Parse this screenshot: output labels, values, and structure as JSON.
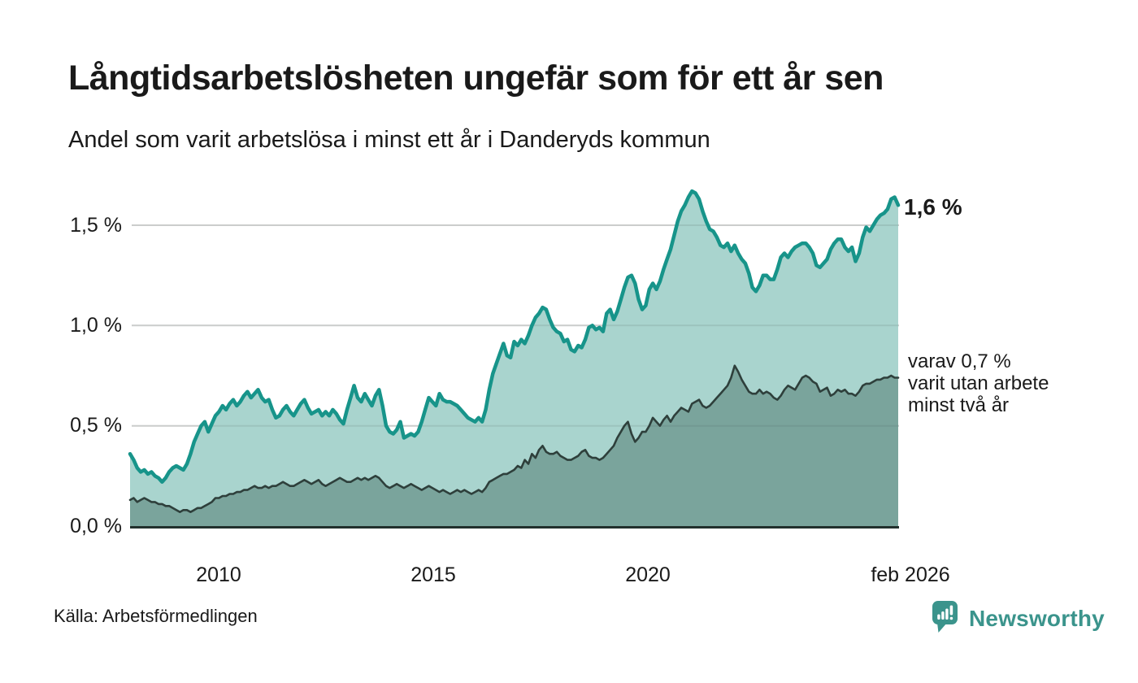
{
  "header": {
    "title": "Långtidsarbetslösheten ungefär som för ett år sen",
    "subtitle": "Andel som varit arbetslösa i minst ett år i Danderyds kommun"
  },
  "chart_data": {
    "type": "area",
    "unit": "percent",
    "frequency": "monthly",
    "x_start": "feb 2008",
    "x_end": "feb 2026",
    "x_tick_labels": [
      "2010",
      "2015",
      "2020",
      "feb 2026"
    ],
    "y_tick_labels": [
      "0,0 %",
      "0,5 %",
      "1,0 %",
      "1,5 %"
    ],
    "y_ticks": [
      0,
      0.5,
      1.0,
      1.5
    ],
    "ylim": [
      0,
      1.75
    ],
    "grid": true,
    "colors": {
      "line_1yr": "#17948a",
      "fill_1yr": "#a9d4ce",
      "line_2yr": "#2e3f3b",
      "fill_2yr": "#7aa49c",
      "gridline": "#e0e0e0",
      "axis": "#22302d",
      "brand_teal": "#3b948c"
    },
    "series": [
      {
        "name": "Arbetslösa minst ett år",
        "values": [
          0.36,
          0.33,
          0.29,
          0.27,
          0.28,
          0.26,
          0.27,
          0.25,
          0.24,
          0.22,
          0.24,
          0.27,
          0.29,
          0.3,
          0.29,
          0.28,
          0.31,
          0.36,
          0.42,
          0.46,
          0.5,
          0.52,
          0.47,
          0.51,
          0.55,
          0.57,
          0.6,
          0.58,
          0.61,
          0.63,
          0.6,
          0.62,
          0.65,
          0.67,
          0.64,
          0.66,
          0.68,
          0.64,
          0.62,
          0.63,
          0.58,
          0.54,
          0.55,
          0.58,
          0.6,
          0.57,
          0.55,
          0.58,
          0.61,
          0.63,
          0.59,
          0.56,
          0.57,
          0.58,
          0.55,
          0.57,
          0.55,
          0.58,
          0.56,
          0.53,
          0.51,
          0.58,
          0.64,
          0.7,
          0.64,
          0.62,
          0.66,
          0.63,
          0.6,
          0.65,
          0.68,
          0.6,
          0.5,
          0.47,
          0.46,
          0.48,
          0.52,
          0.44,
          0.45,
          0.46,
          0.45,
          0.47,
          0.52,
          0.58,
          0.64,
          0.62,
          0.6,
          0.66,
          0.63,
          0.62,
          0.62,
          0.61,
          0.6,
          0.58,
          0.56,
          0.54,
          0.53,
          0.52,
          0.54,
          0.52,
          0.58,
          0.68,
          0.76,
          0.81,
          0.86,
          0.91,
          0.85,
          0.84,
          0.92,
          0.9,
          0.93,
          0.91,
          0.95,
          1.0,
          1.04,
          1.06,
          1.09,
          1.08,
          1.03,
          0.99,
          0.97,
          0.96,
          0.92,
          0.93,
          0.88,
          0.87,
          0.9,
          0.89,
          0.93,
          0.99,
          1.0,
          0.98,
          0.99,
          0.97,
          1.06,
          1.08,
          1.03,
          1.07,
          1.13,
          1.19,
          1.24,
          1.25,
          1.21,
          1.13,
          1.08,
          1.1,
          1.18,
          1.21,
          1.18,
          1.22,
          1.28,
          1.33,
          1.38,
          1.45,
          1.52,
          1.57,
          1.6,
          1.64,
          1.67,
          1.66,
          1.63,
          1.57,
          1.52,
          1.48,
          1.47,
          1.44,
          1.4,
          1.39,
          1.41,
          1.37,
          1.4,
          1.36,
          1.33,
          1.31,
          1.26,
          1.19,
          1.17,
          1.2,
          1.25,
          1.25,
          1.23,
          1.23,
          1.28,
          1.34,
          1.36,
          1.34,
          1.37,
          1.39,
          1.4,
          1.41,
          1.41,
          1.39,
          1.36,
          1.3,
          1.29,
          1.31,
          1.33,
          1.38,
          1.41,
          1.43,
          1.43,
          1.39,
          1.37,
          1.39,
          1.32,
          1.36,
          1.44,
          1.49,
          1.47,
          1.5,
          1.53,
          1.55,
          1.56,
          1.58,
          1.63,
          1.64,
          1.6
        ]
      },
      {
        "name": "Arbetslösa minst två år",
        "values": [
          0.13,
          0.14,
          0.12,
          0.13,
          0.14,
          0.13,
          0.12,
          0.12,
          0.11,
          0.11,
          0.1,
          0.1,
          0.09,
          0.08,
          0.07,
          0.08,
          0.08,
          0.07,
          0.08,
          0.09,
          0.09,
          0.1,
          0.11,
          0.12,
          0.14,
          0.14,
          0.15,
          0.15,
          0.16,
          0.16,
          0.17,
          0.17,
          0.18,
          0.18,
          0.19,
          0.2,
          0.19,
          0.19,
          0.2,
          0.19,
          0.2,
          0.2,
          0.21,
          0.22,
          0.21,
          0.2,
          0.2,
          0.21,
          0.22,
          0.23,
          0.22,
          0.21,
          0.22,
          0.23,
          0.21,
          0.2,
          0.21,
          0.22,
          0.23,
          0.24,
          0.23,
          0.22,
          0.22,
          0.23,
          0.24,
          0.23,
          0.24,
          0.23,
          0.24,
          0.25,
          0.24,
          0.22,
          0.2,
          0.19,
          0.2,
          0.21,
          0.2,
          0.19,
          0.2,
          0.21,
          0.2,
          0.19,
          0.18,
          0.19,
          0.2,
          0.19,
          0.18,
          0.17,
          0.18,
          0.17,
          0.16,
          0.17,
          0.18,
          0.17,
          0.18,
          0.17,
          0.16,
          0.17,
          0.18,
          0.17,
          0.19,
          0.22,
          0.23,
          0.24,
          0.25,
          0.26,
          0.26,
          0.27,
          0.28,
          0.3,
          0.29,
          0.33,
          0.31,
          0.36,
          0.34,
          0.38,
          0.4,
          0.37,
          0.36,
          0.36,
          0.37,
          0.35,
          0.34,
          0.33,
          0.33,
          0.34,
          0.35,
          0.37,
          0.38,
          0.35,
          0.34,
          0.34,
          0.33,
          0.34,
          0.36,
          0.38,
          0.4,
          0.44,
          0.47,
          0.5,
          0.52,
          0.46,
          0.42,
          0.44,
          0.47,
          0.47,
          0.5,
          0.54,
          0.52,
          0.5,
          0.53,
          0.55,
          0.52,
          0.55,
          0.57,
          0.59,
          0.58,
          0.57,
          0.61,
          0.62,
          0.63,
          0.6,
          0.59,
          0.6,
          0.62,
          0.64,
          0.66,
          0.68,
          0.7,
          0.74,
          0.8,
          0.77,
          0.73,
          0.7,
          0.67,
          0.66,
          0.66,
          0.68,
          0.66,
          0.67,
          0.66,
          0.64,
          0.63,
          0.65,
          0.68,
          0.7,
          0.69,
          0.68,
          0.71,
          0.74,
          0.75,
          0.74,
          0.72,
          0.71,
          0.67,
          0.68,
          0.69,
          0.65,
          0.66,
          0.68,
          0.67,
          0.68,
          0.66,
          0.66,
          0.65,
          0.67,
          0.7,
          0.71,
          0.71,
          0.72,
          0.73,
          0.73,
          0.74,
          0.74,
          0.75,
          0.74,
          0.74
        ]
      }
    ],
    "annotations": {
      "end_value_label": "1,6 %",
      "secondary_lines": [
        "varav 0,7 %",
        "varit utan arbete",
        "minst två år"
      ]
    }
  },
  "footer": {
    "source": "Källa: Arbetsförmedlingen",
    "brand": "Newsworthy"
  }
}
